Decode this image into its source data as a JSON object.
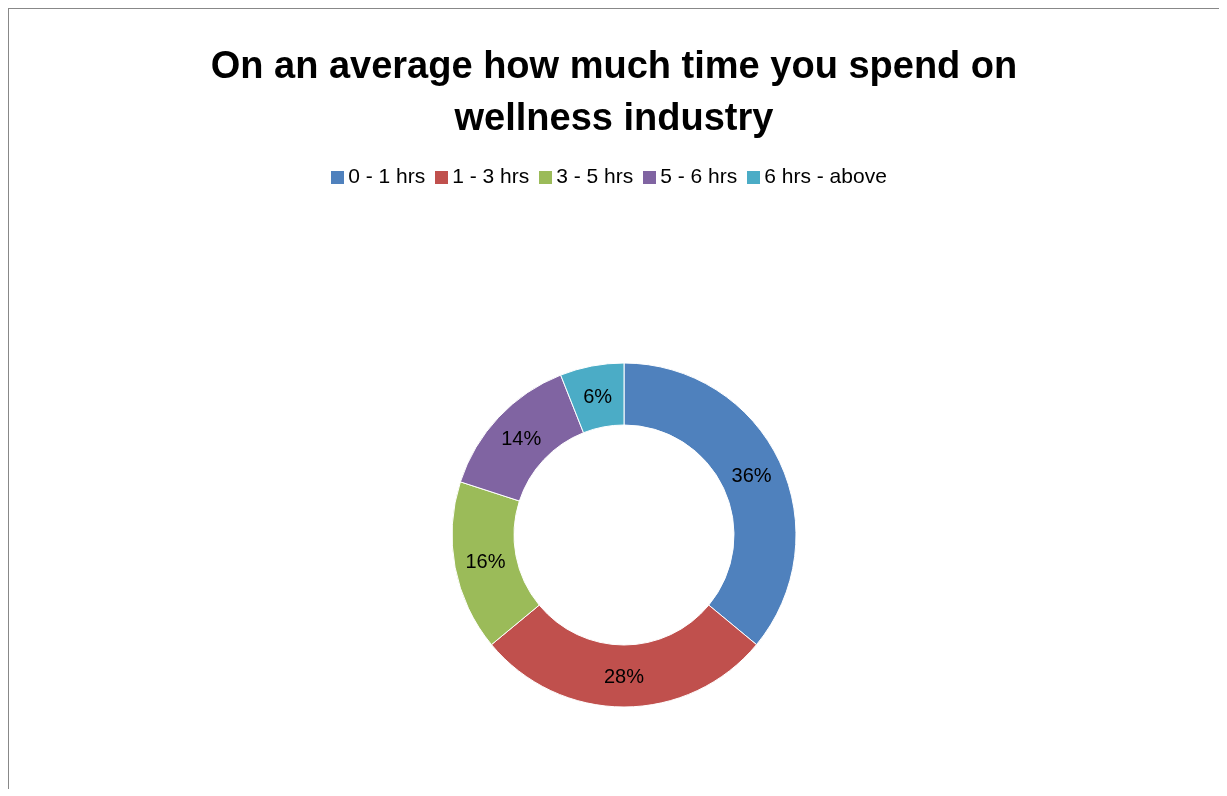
{
  "chart_data": {
    "type": "donut",
    "title": "On an average how much time you spend on wellness industry",
    "categories": [
      "0 - 1 hrs",
      "1 - 3 hrs",
      "3 - 5 hrs",
      "5 - 6 hrs",
      "6 hrs - above"
    ],
    "values": [
      36,
      28,
      16,
      14,
      6
    ],
    "colors": [
      "#4f81bd",
      "#c0504d",
      "#9bbb59",
      "#8064a2",
      "#4bacc6"
    ],
    "value_labels": [
      "36%",
      "28%",
      "16%",
      "14%",
      "6%"
    ],
    "legend": "top"
  }
}
